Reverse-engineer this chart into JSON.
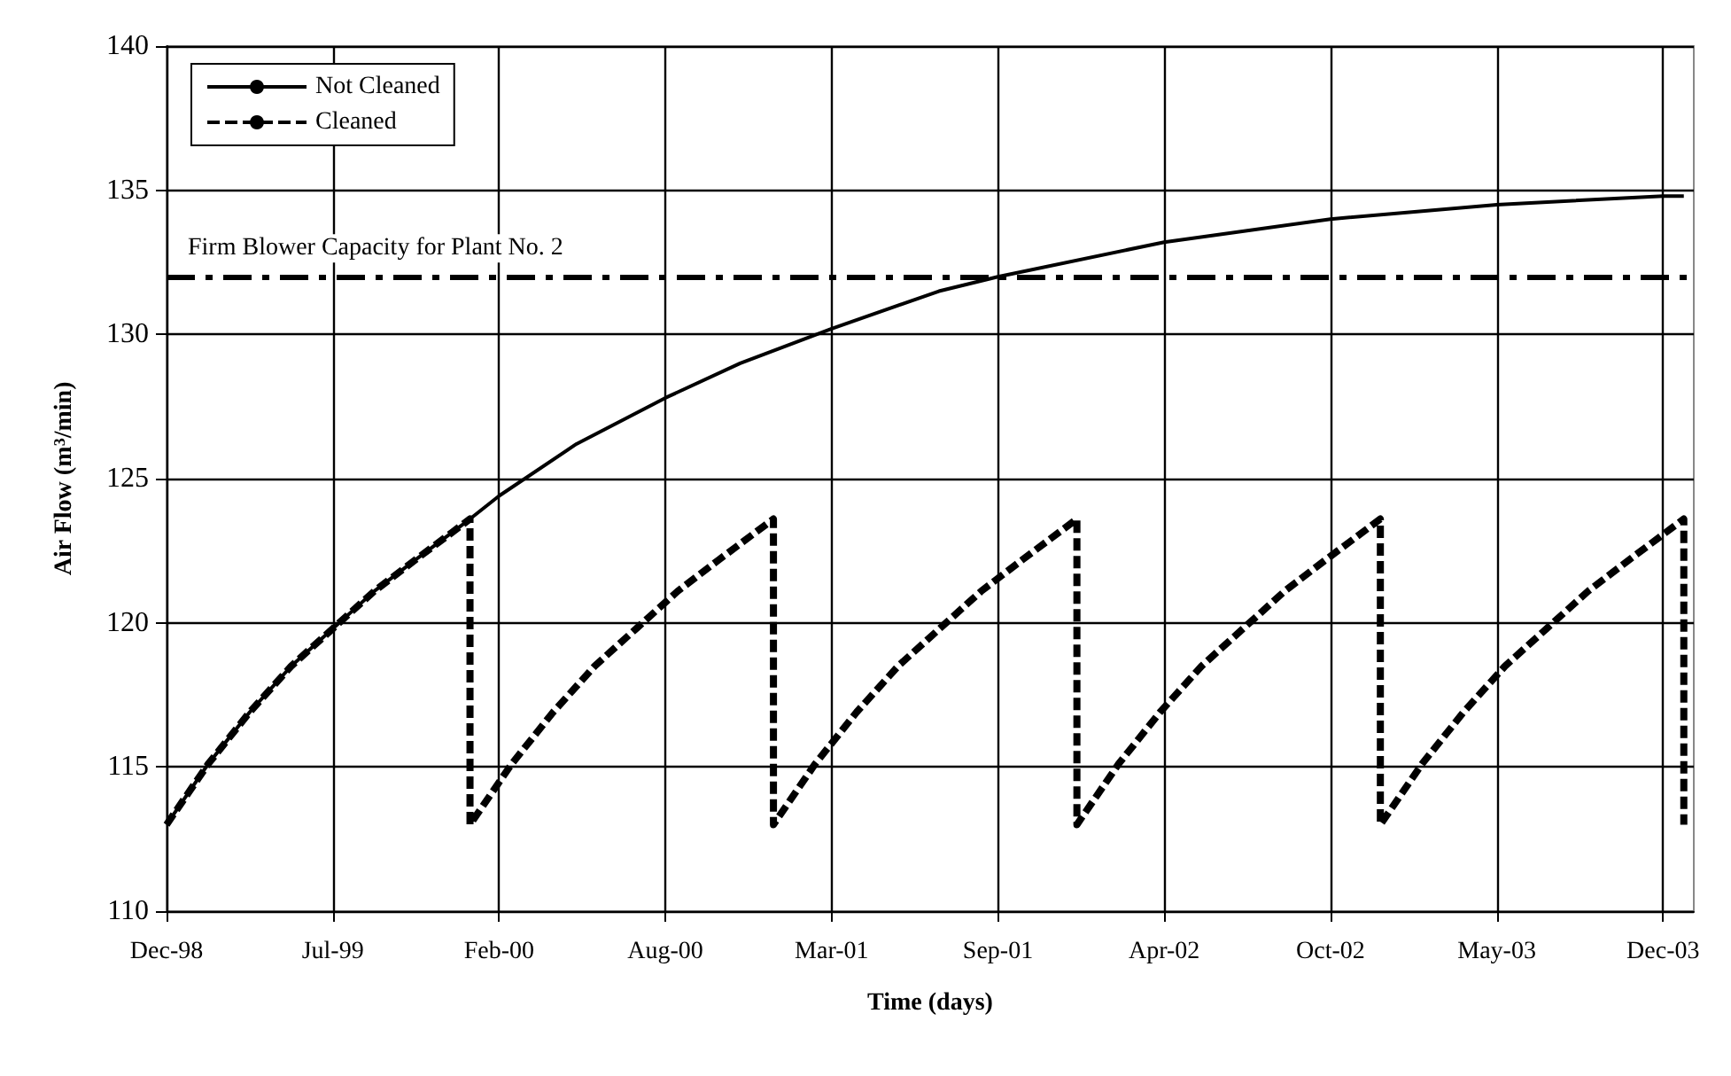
{
  "chart_data": {
    "type": "line",
    "xlabel": "Time (days)",
    "ylabel": "Air Flow (m$^{3}$/min)",
    "xlim": [
      "1998-12-31",
      "2004-01-11"
    ],
    "xticks": [
      {
        "value": "1998-12-31",
        "label": "Dec-98"
      },
      {
        "value": "1999-07-19",
        "label": "Jul-99"
      },
      {
        "value": "2000-02-04",
        "label": "Feb-00"
      },
      {
        "value": "2000-08-22",
        "label": "Aug-00"
      },
      {
        "value": "2001-03-10",
        "label": "Mar-01"
      },
      {
        "value": "2001-09-26",
        "label": "Sep-01"
      },
      {
        "value": "2002-04-14",
        "label": "Apr-02"
      },
      {
        "value": "2002-10-31",
        "label": "Oct-02"
      },
      {
        "value": "2003-05-19",
        "label": "May-03"
      },
      {
        "value": "2003-12-05",
        "label": "Dec-03"
      }
    ],
    "ylim": [
      110,
      140
    ],
    "yticks": [
      110,
      115,
      120,
      125,
      130,
      135,
      140
    ],
    "grid": true,
    "legend": "top left",
    "marker": "none",
    "series": [
      {
        "name": "Not Cleaned",
        "color": "#000000",
        "line_style": "solid",
        "x": [
          "1998-12-31",
          "1999-02-19",
          "1999-04-10",
          "1999-05-30",
          "1999-07-19",
          "1999-09-07",
          "1999-10-27",
          "1999-12-31",
          "2000-02-04",
          "2000-05-07",
          "2000-08-22",
          "2000-11-20",
          "2001-03-10",
          "2001-07-17",
          "2001-09-26",
          "2002-04-14",
          "2002-10-31",
          "2003-05-19",
          "2003-12-05",
          "2003-12-30"
        ],
        "values": [
          113,
          115.1,
          116.9,
          118.5,
          119.8,
          121.1,
          122.2,
          123.6,
          124.4,
          126.2,
          127.8,
          129,
          130.2,
          131.5,
          132,
          133.2,
          134,
          134.5,
          134.8,
          134.8
        ]
      },
      {
        "name": "Cleaned",
        "color": "#000000",
        "line_style": "dashed",
        "x": [
          "1998-12-31",
          "1999-02-19",
          "1999-04-10",
          "1999-05-30",
          "1999-07-19",
          "1999-09-07",
          "1999-10-27",
          "1999-12-31",
          "1999-12-31",
          "2000-02-19",
          "2000-04-09",
          "2000-05-29",
          "2000-07-18",
          "2000-09-06",
          "2000-10-26",
          "2000-12-30",
          "2000-12-30",
          "2001-02-18",
          "2001-04-09",
          "2001-05-29",
          "2001-07-18",
          "2001-09-06",
          "2001-10-26",
          "2001-12-30",
          "2001-12-30",
          "2002-02-18",
          "2002-04-09",
          "2002-05-29",
          "2002-07-18",
          "2002-09-06",
          "2002-10-26",
          "2002-12-30",
          "2002-12-30",
          "2003-02-18",
          "2003-04-09",
          "2003-05-29",
          "2003-07-18",
          "2003-09-06",
          "2003-10-26",
          "2003-12-30",
          "2003-12-30"
        ],
        "values": [
          113,
          115.1,
          116.9,
          118.5,
          119.8,
          121.1,
          122.2,
          123.6,
          113,
          115.1,
          116.9,
          118.5,
          119.8,
          121.1,
          122.2,
          123.6,
          113,
          115.1,
          116.9,
          118.5,
          119.8,
          121.1,
          122.2,
          123.6,
          113,
          115.1,
          116.9,
          118.5,
          119.8,
          121.1,
          122.2,
          123.6,
          113,
          115.1,
          116.9,
          118.5,
          119.8,
          121.1,
          122.2,
          123.6,
          113
        ]
      }
    ],
    "ref_lines": [
      {
        "axis": "y",
        "value": 132,
        "label": "Firm Blower Capacity for Plant No. 2",
        "color": "#000000",
        "line_style": "dashed"
      }
    ]
  }
}
